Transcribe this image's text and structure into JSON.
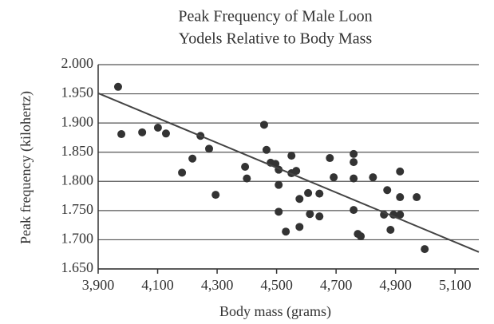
{
  "chart_data": {
    "type": "scatter",
    "title": [
      "Peak Frequency of Male Loon",
      "Yodels Relative to Body Mass"
    ],
    "xlabel": "Body mass (grams)",
    "ylabel": "Peak frequency (kilohertz)",
    "x": [
      3967,
      3978,
      4048,
      4101,
      4128,
      4182,
      4217,
      4244,
      4273,
      4295,
      4394,
      4400,
      4458,
      4466,
      4480,
      4496,
      4507,
      4507,
      4507,
      4531,
      4550,
      4550,
      4566,
      4577,
      4577,
      4606,
      4612,
      4644,
      4644,
      4679,
      4692,
      4759,
      4759,
      4759,
      4759,
      4773,
      4783,
      4824,
      4872,
      4861,
      4883,
      4893,
      4915,
      4915,
      4915,
      4971,
      4998
    ],
    "values": [
      1.962,
      1.881,
      1.884,
      1.892,
      1.882,
      1.815,
      1.839,
      1.878,
      1.856,
      1.777,
      1.825,
      1.805,
      1.897,
      1.854,
      1.832,
      1.83,
      1.82,
      1.794,
      1.748,
      1.714,
      1.844,
      1.814,
      1.818,
      1.77,
      1.722,
      1.78,
      1.744,
      1.779,
      1.74,
      1.84,
      1.807,
      1.847,
      1.833,
      1.805,
      1.751,
      1.71,
      1.706,
      1.807,
      1.785,
      1.743,
      1.717,
      1.743,
      1.743,
      1.773,
      1.817,
      1.773,
      1.684
    ],
    "color": "#333333",
    "trend_line": {
      "x": [
        3900,
        5180
      ],
      "y": [
        1.951,
        1.679
      ],
      "color": "#444444"
    },
    "xlim": [
      3900,
      5180
    ],
    "ylim": [
      1.65,
      2.0
    ],
    "xticks": [
      {
        "value": 3900,
        "label": "3,900"
      },
      {
        "value": 4100,
        "label": "4,100"
      },
      {
        "value": 4300,
        "label": "4,300"
      },
      {
        "value": 4500,
        "label": "4,500"
      },
      {
        "value": 4700,
        "label": "4,700"
      },
      {
        "value": 4900,
        "label": "4,900"
      },
      {
        "value": 5100,
        "label": "5,100"
      }
    ],
    "yticks": [
      {
        "value": 1.65,
        "label": "1.650"
      },
      {
        "value": 1.7,
        "label": "1.700"
      },
      {
        "value": 1.75,
        "label": "1.750"
      },
      {
        "value": 1.8,
        "label": "1.800"
      },
      {
        "value": 1.85,
        "label": "1.850"
      },
      {
        "value": 1.9,
        "label": "1.900"
      },
      {
        "value": 1.95,
        "label": "1.950"
      },
      {
        "value": 2.0,
        "label": "2.000"
      }
    ],
    "grid": "horizontal"
  }
}
